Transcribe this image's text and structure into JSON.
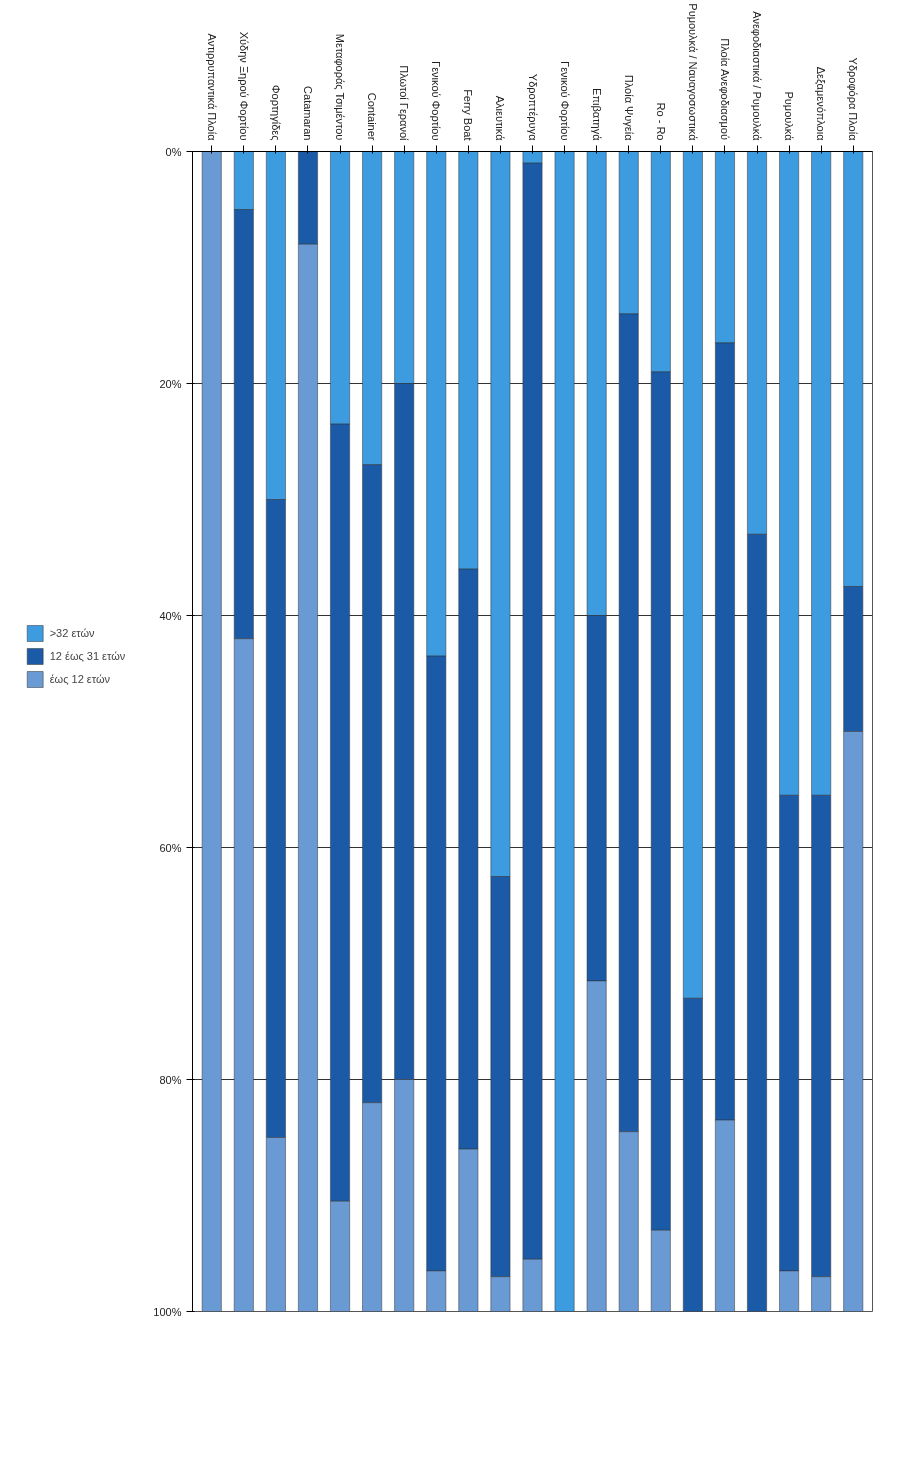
{
  "chart_data": {
    "type": "bar",
    "stacked": true,
    "categories": [
      "Αντιρρυπαντικά Πλοία",
      "Χύδην Ξηρού Φορτίου",
      "Φορτηγίδες",
      "Catamaran",
      "Μεταφοράς Τσιμέντου",
      "Container",
      "Πλωτοί Γερανοί",
      "Γενικού Φορτίου",
      "Ferry Boat",
      "Αλιευτικά",
      "Υδροπτέρυγα",
      "Γενικού Φορτίου",
      "Επιβατηγά",
      "Πλοία Ψυγεία",
      "Ro - Ro",
      "Ρυμουλκά / Ναυαγοσωστικά",
      "Πλοία Ανεφοδιασμού",
      "Ανεφοδιαστικά / Ρυμουλκά",
      "Ρυμουλκά",
      "Δεξαμενόπλοια",
      "Υδροφόρα Πλοία"
    ],
    "series": [
      {
        "name": ">32 ετών",
        "color": "#3d9be0",
        "values": [
          0,
          5,
          30,
          0,
          23.5,
          27,
          20,
          43.5,
          36,
          62.5,
          1,
          100,
          40,
          14,
          19,
          73,
          16.5,
          33,
          55.5,
          55.5,
          37.5
        ]
      },
      {
        "name": "12 έως 31 ετών",
        "color": "#1a5aa6",
        "values": [
          0,
          37,
          55,
          8,
          67,
          55,
          60,
          53,
          50,
          34.5,
          94.5,
          0,
          31.5,
          70.5,
          74,
          27,
          67,
          67,
          41,
          41.5,
          12.5
        ]
      },
      {
        "name": "έως 12 ετών",
        "color": "#6a9ad4",
        "values": [
          100,
          58,
          15,
          92,
          9.5,
          18,
          20,
          3.5,
          14,
          3,
          4.5,
          0,
          28.5,
          15.5,
          7,
          0,
          16.5,
          0,
          3.5,
          3,
          50
        ]
      }
    ],
    "ylim": [
      100,
      0
    ],
    "yticks": [
      {
        "value": 0,
        "label": "0%"
      },
      {
        "value": 20,
        "label": "20%"
      },
      {
        "value": 40,
        "label": "40%"
      },
      {
        "value": 60,
        "label": "60%"
      },
      {
        "value": 80,
        "label": "80%"
      },
      {
        "value": 100,
        "label": "100%"
      }
    ],
    "grid": "y",
    "legend": "left"
  }
}
